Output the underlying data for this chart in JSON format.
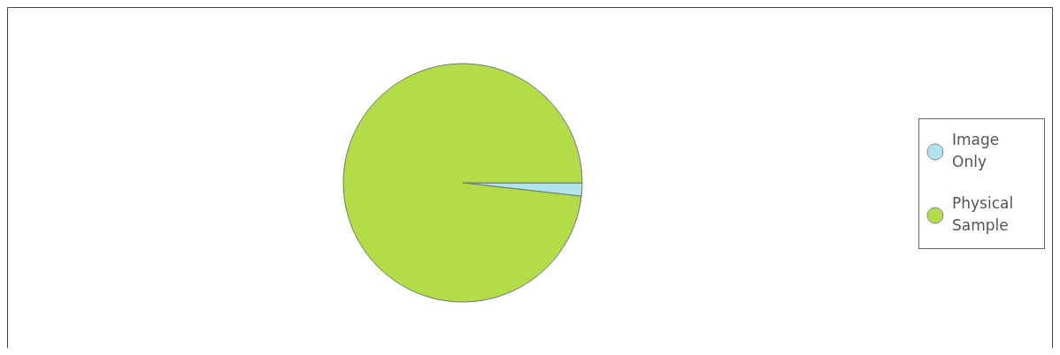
{
  "chart_data": {
    "type": "pie",
    "categories": [
      "Image Only",
      "Physical Sample"
    ],
    "values": [
      1.8,
      98.2
    ],
    "colors": [
      "#b4e3f0",
      "#b2dc48"
    ],
    "legend": "right"
  }
}
